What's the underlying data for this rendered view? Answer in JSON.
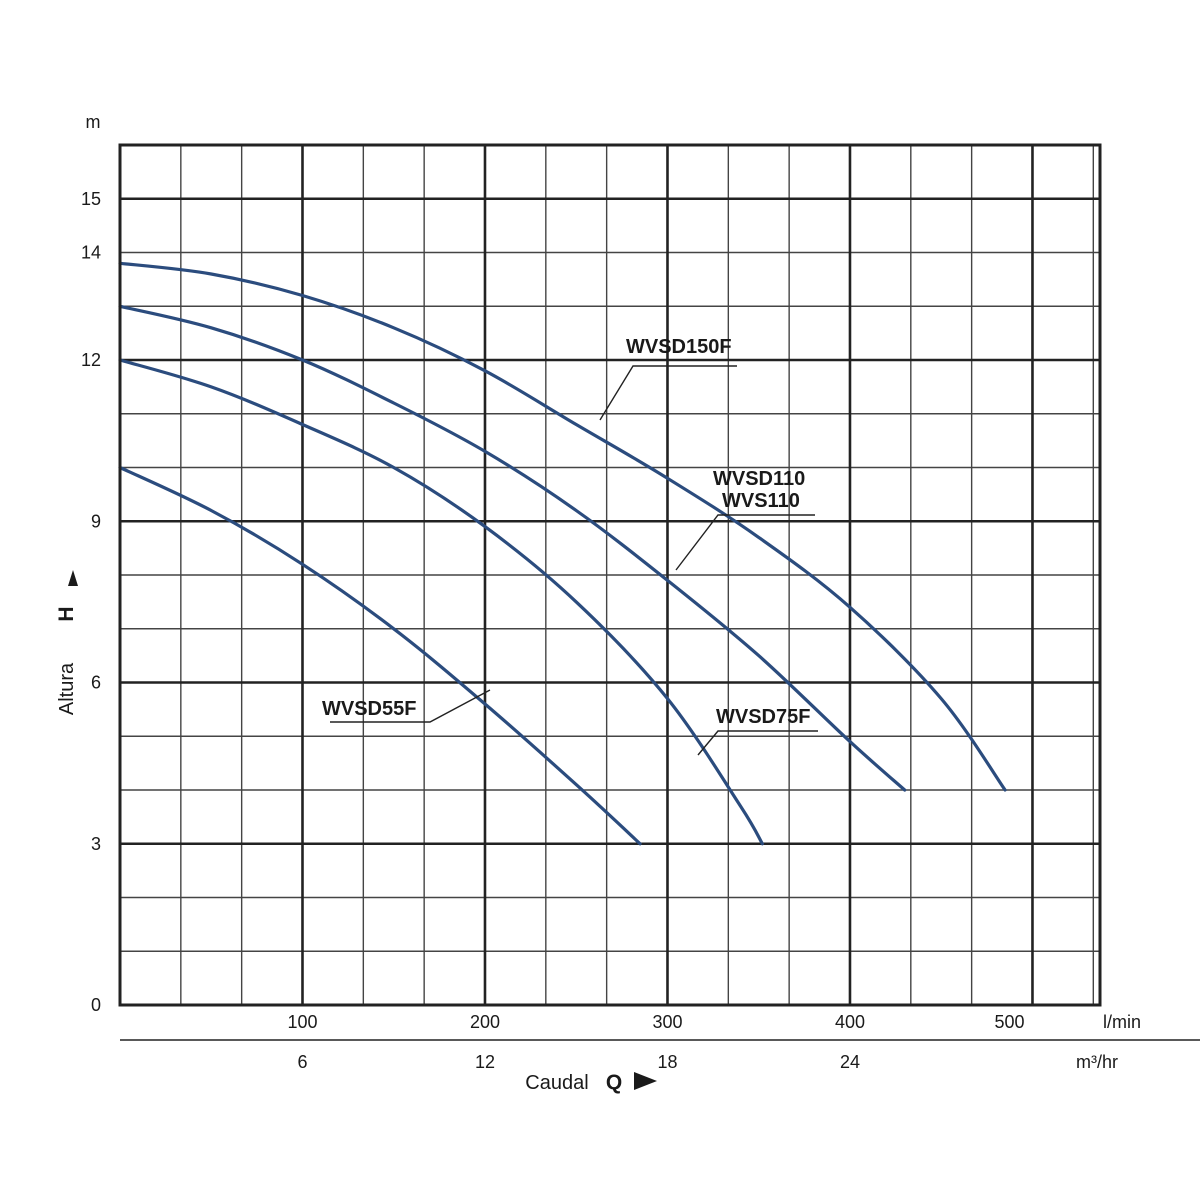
{
  "chart_data": {
    "type": "line",
    "y_axis": {
      "unit": "m",
      "ticks": [
        "0",
        "3",
        "6",
        "9",
        "12",
        "14",
        "15"
      ],
      "label_text": "Altura",
      "label_symbol": "H",
      "ylim": [
        0,
        16
      ]
    },
    "x_axis_primary": {
      "unit": "l/min",
      "ticks": [
        {
          "value": 100,
          "label": "100"
        },
        {
          "value": 200,
          "label": "200"
        },
        {
          "value": 300,
          "label": "300"
        },
        {
          "value": 400,
          "label": "400"
        },
        {
          "value": 500,
          "label": "500"
        }
      ],
      "xlim": [
        0,
        537
      ]
    },
    "x_axis_secondary": {
      "unit": "m³/hr",
      "ticks": [
        {
          "value": 6,
          "label": "6"
        },
        {
          "value": 12,
          "label": "12"
        },
        {
          "value": 18,
          "label": "18"
        },
        {
          "value": 24,
          "label": "24"
        }
      ],
      "label_text": "Caudal",
      "label_symbol": "Q"
    },
    "grid": true,
    "series_color": "#2b4c7e",
    "series": [
      {
        "name": "WVSD150F",
        "x": [
          0,
          50,
          100,
          150,
          200,
          250,
          300,
          350,
          400,
          450,
          485
        ],
        "y": [
          13.8,
          13.6,
          13.2,
          12.6,
          11.8,
          10.8,
          9.8,
          8.7,
          7.4,
          5.7,
          4.0
        ]
      },
      {
        "name": "WVSD110 / WVS110",
        "x": [
          0,
          50,
          100,
          150,
          200,
          250,
          300,
          350,
          400,
          430
        ],
        "y": [
          13.0,
          12.6,
          12.0,
          11.2,
          10.3,
          9.2,
          7.9,
          6.5,
          4.9,
          4.0
        ]
      },
      {
        "name": "WVSD75F",
        "x": [
          0,
          50,
          100,
          150,
          200,
          250,
          300,
          340,
          352
        ],
        "y": [
          12.0,
          11.5,
          10.8,
          10.0,
          8.9,
          7.5,
          5.7,
          3.7,
          3.0
        ]
      },
      {
        "name": "WVSD55F",
        "x": [
          0,
          50,
          100,
          150,
          200,
          250,
          285
        ],
        "y": [
          10.0,
          9.2,
          8.2,
          7.0,
          5.6,
          4.1,
          3.0
        ]
      }
    ],
    "labels": {
      "WVSD150F": "WVSD150F",
      "WVSD110": "WVSD110",
      "WVS110": "WVS110",
      "WVSD75F": "WVSD75F",
      "WVSD55F": "WVSD55F"
    }
  }
}
